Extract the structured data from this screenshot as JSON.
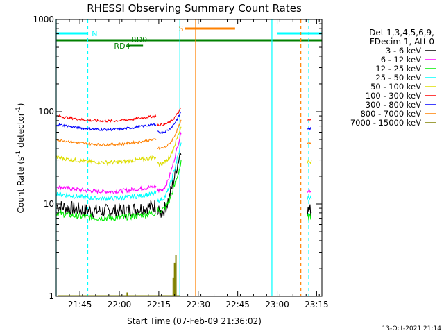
{
  "chart_data": {
    "type": "line",
    "title": "RHESSI Observing Summary Count Rates",
    "xlabel": "Start Time (07-Feb-09 21:36:02)",
    "ylabel_main": "Count Rate (s",
    "ylabel_sup1": "-1",
    "ylabel_mid": " detector",
    "ylabel_sup2": "-1",
    "ylabel_end": ")",
    "yscale": "log",
    "ylim": [
      1,
      1000
    ],
    "xlim_minutes": [
      0,
      101
    ],
    "x_ticks": [
      {
        "label": "21:45",
        "m": 9
      },
      {
        "label": "22:00",
        "m": 24
      },
      {
        "label": "22:15",
        "m": 39
      },
      {
        "label": "22:30",
        "m": 54
      },
      {
        "label": "22:45",
        "m": 69
      },
      {
        "label": "23:00",
        "m": 84
      },
      {
        "label": "23:15",
        "m": 99
      }
    ],
    "y_ticks": [
      {
        "label": "1",
        "v": 1
      },
      {
        "label": "10",
        "v": 10
      },
      {
        "label": "100",
        "v": 100
      },
      {
        "label": "1000",
        "v": 1000
      }
    ],
    "legend_title": [
      "Det 1,3,4,5,6,9,",
      "FDecim 1, Att 0"
    ],
    "series": [
      {
        "name": "3 - 6 keV",
        "color": "#000000"
      },
      {
        "name": "6 - 12 keV",
        "color": "#ff00ff"
      },
      {
        "name": "12 - 25 keV",
        "color": "#00ee00"
      },
      {
        "name": "25 - 50 keV",
        "color": "#00ffff"
      },
      {
        "name": "50 - 100 keV",
        "color": "#dddd00"
      },
      {
        "name": "100 - 300 keV",
        "color": "#ff0000"
      },
      {
        "name": "300 - 800 keV",
        "color": "#0000ff"
      },
      {
        "name": "800 - 7000 keV",
        "color": "#ff8000"
      },
      {
        "name": "7000 - 15000 keV",
        "color": "#808000"
      }
    ],
    "flags": [
      {
        "label": "N",
        "color": "#00ffff"
      },
      {
        "label": "S",
        "color": "#ff8000"
      },
      {
        "label": "RD0",
        "color": "#008000"
      },
      {
        "label": "RD4",
        "color": "#008000"
      }
    ],
    "timestamp": "13-Oct-2021 21:14"
  }
}
